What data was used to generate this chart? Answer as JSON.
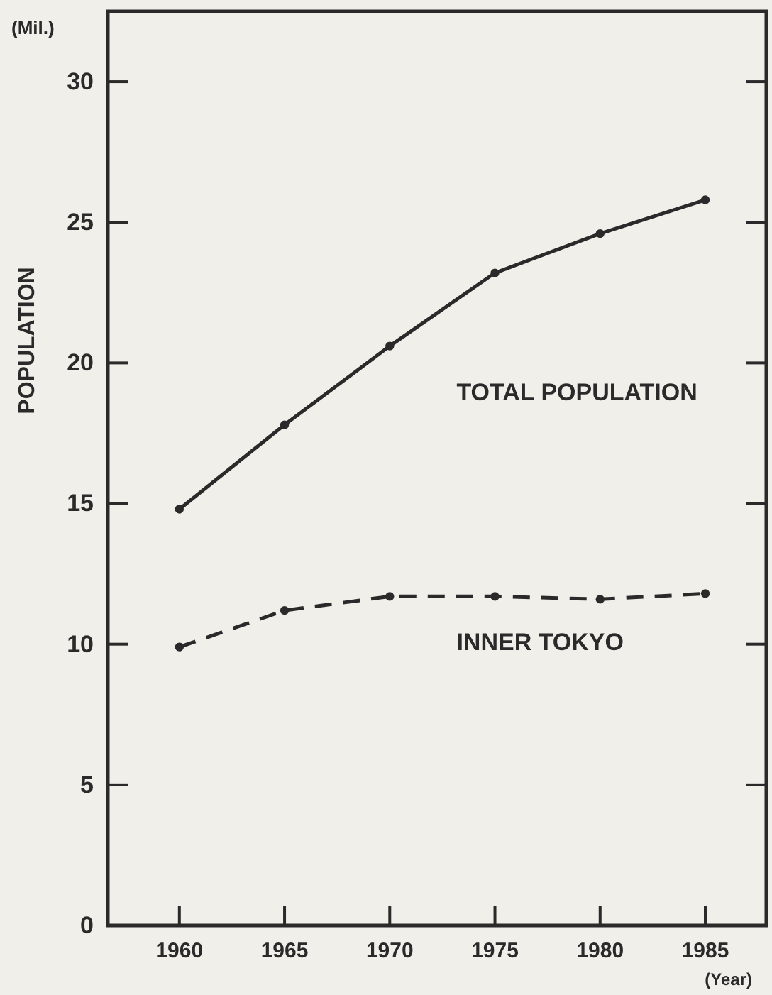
{
  "chart_data": {
    "type": "line",
    "xlabel": "(Year)",
    "ylabel": "POPULATION",
    "annotations": [
      "(Mil.)"
    ],
    "x": [
      1960,
      1965,
      1970,
      1975,
      1980,
      1985
    ],
    "series": [
      {
        "name": "TOTAL POPULATION",
        "color": "#2a2a2a",
        "values": [
          14.8,
          17.8,
          20.6,
          23.2,
          24.6,
          25.8
        ],
        "line_style": "solid"
      },
      {
        "name": "INNER TOKYO",
        "color": "#2a2a2a",
        "values": [
          9.9,
          11.2,
          11.7,
          11.7,
          11.6,
          11.8
        ],
        "line_style": "dashed"
      }
    ],
    "xlim": [
      1956.6,
      1987.9
    ],
    "xticks": [
      1960,
      1965,
      1970,
      1975,
      1980,
      1985
    ],
    "ylim": [
      0,
      32.5
    ],
    "yticks": [
      0,
      5,
      10,
      15,
      20,
      25,
      30
    ],
    "marker": "circle",
    "grid": false
  }
}
